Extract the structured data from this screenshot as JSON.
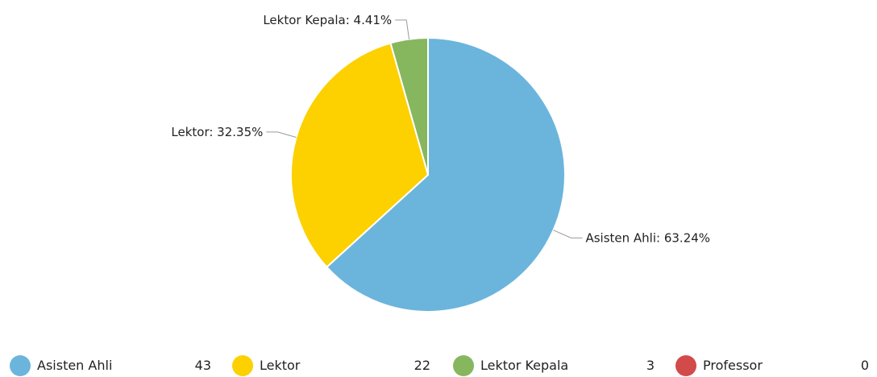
{
  "chart_data": {
    "type": "pie",
    "categories": [
      "Asisten Ahli",
      "Lektor",
      "Lektor Kepala",
      "Professor"
    ],
    "values": [
      43,
      22,
      3,
      0
    ],
    "percent_labels": [
      "Asisten Ahli: 63.24%",
      "Lektor: 32.35%",
      "Lektor Kepala: 4.41%",
      ""
    ],
    "colors": [
      "#6bb5dc",
      "#fdd000",
      "#86b75f",
      "#d34a4a"
    ],
    "legend_placement": "bottom"
  },
  "legend": {
    "items": [
      {
        "label": "Asisten Ahli",
        "value": "43",
        "color": "#6bb5dc"
      },
      {
        "label": "Lektor",
        "value": "22",
        "color": "#fdd000"
      },
      {
        "label": "Lektor Kepala",
        "value": "3",
        "color": "#86b75f"
      },
      {
        "label": "Professor",
        "value": "0",
        "color": "#d34a4a"
      }
    ]
  }
}
